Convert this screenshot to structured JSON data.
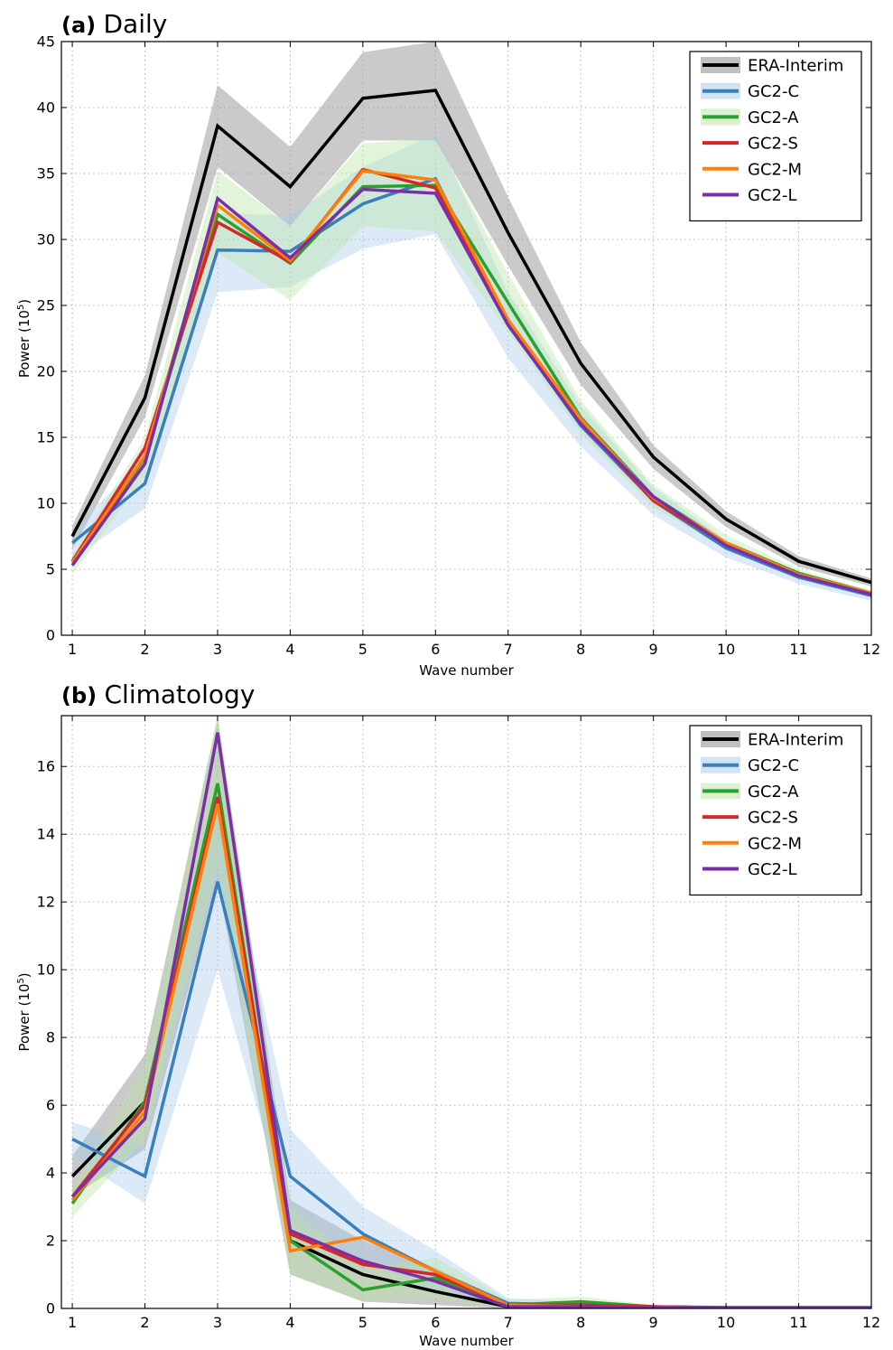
{
  "chart_data": [
    {
      "type": "line",
      "panel_letter": "(a)",
      "title": "Daily",
      "xlabel": "Wave number",
      "ylabel": "Power (10",
      "ylabel_sup": "5",
      "ylabel_close": ")",
      "x": [
        1,
        2,
        3,
        4,
        5,
        6,
        7,
        8,
        9,
        10,
        11,
        12
      ],
      "xlim": [
        0.85,
        12
      ],
      "ylim": [
        0,
        45
      ],
      "yticks": [
        0,
        5,
        10,
        15,
        20,
        25,
        30,
        35,
        40,
        45
      ],
      "grid": true,
      "legend_position": "top-right",
      "series": [
        {
          "name": "ERA-Interim",
          "color": "#000000",
          "band_color": "#9e9e9e",
          "band_opacity": 0.55,
          "values": [
            7.5,
            18.0,
            38.6,
            34.0,
            40.7,
            41.3,
            30.5,
            20.6,
            13.5,
            8.8,
            5.6,
            4.0
          ],
          "lower": [
            6.5,
            16.5,
            35.5,
            31.0,
            37.5,
            37.5,
            28.0,
            19.0,
            12.6,
            8.2,
            5.2,
            3.7
          ],
          "upper": [
            8.3,
            19.7,
            41.7,
            37.0,
            44.2,
            45.0,
            33.2,
            22.2,
            14.4,
            9.4,
            6.0,
            4.3
          ]
        },
        {
          "name": "GC2-C",
          "color": "#3a7fbd",
          "band_color": "#a8c8ea",
          "band_opacity": 0.4,
          "values": [
            7.0,
            11.5,
            29.2,
            29.1,
            32.7,
            34.6,
            23.6,
            15.9,
            10.2,
            6.6,
            4.4,
            3.0
          ],
          "lower": [
            5.8,
            9.6,
            26.0,
            26.4,
            29.3,
            30.4,
            21.0,
            14.3,
            9.1,
            5.9,
            3.9,
            2.6
          ],
          "upper": [
            8.0,
            13.4,
            32.0,
            31.8,
            35.5,
            38.0,
            26.0,
            17.4,
            11.2,
            7.2,
            4.8,
            3.3
          ]
        },
        {
          "name": "GC2-A",
          "color": "#2ca02c",
          "band_color": "#b7e6a6",
          "band_opacity": 0.4,
          "values": [
            5.3,
            13.5,
            31.9,
            28.2,
            34.0,
            34.1,
            25.2,
            16.5,
            10.5,
            7.0,
            4.7,
            3.2
          ],
          "lower": [
            4.6,
            12.0,
            29.0,
            25.4,
            31.0,
            30.6,
            23.0,
            15.3,
            9.7,
            6.5,
            4.4,
            2.9
          ],
          "upper": [
            6.0,
            15.0,
            35.2,
            31.0,
            37.3,
            37.6,
            27.4,
            17.8,
            11.4,
            7.6,
            5.0,
            3.4
          ]
        },
        {
          "name": "GC2-S",
          "color": "#d62728",
          "band_color": "#f3b5b5",
          "band_opacity": 0.0,
          "values": [
            5.6,
            14.2,
            31.3,
            28.3,
            35.3,
            33.9,
            23.6,
            16.2,
            10.2,
            6.9,
            4.6,
            3.1
          ]
        },
        {
          "name": "GC2-M",
          "color": "#ff7f0e",
          "band_color": "#ffd0a0",
          "band_opacity": 0.0,
          "values": [
            5.5,
            13.6,
            32.6,
            28.4,
            35.2,
            34.5,
            23.9,
            16.4,
            10.4,
            7.0,
            4.6,
            3.2
          ]
        },
        {
          "name": "GC2-L",
          "color": "#7b2fa6",
          "band_color": "#d3b5e6",
          "band_opacity": 0.0,
          "values": [
            5.3,
            13.0,
            33.1,
            28.6,
            33.8,
            33.5,
            23.5,
            16.0,
            10.5,
            6.8,
            4.5,
            3.1
          ]
        }
      ]
    },
    {
      "type": "line",
      "panel_letter": "(b)",
      "title": "Climatology",
      "xlabel": "Wave number",
      "ylabel": "Power (10",
      "ylabel_sup": "5",
      "ylabel_close": ")",
      "x": [
        1,
        2,
        3,
        4,
        5,
        6,
        7,
        8,
        9,
        10,
        11,
        12
      ],
      "xlim": [
        0.85,
        12
      ],
      "ylim": [
        0,
        17.5
      ],
      "yticks": [
        0,
        2,
        4,
        6,
        8,
        10,
        12,
        14,
        16
      ],
      "grid": true,
      "legend_position": "top-right",
      "series": [
        {
          "name": "ERA-Interim",
          "color": "#000000",
          "band_color": "#9e9e9e",
          "band_opacity": 0.55,
          "values": [
            3.9,
            6.1,
            15.0,
            2.0,
            1.0,
            0.5,
            0.05,
            0.05,
            0.02,
            0.02,
            0.02,
            0.02
          ],
          "lower": [
            3.3,
            4.7,
            12.6,
            1.0,
            0.2,
            0.1,
            0.0,
            0.0,
            0.0,
            0.0,
            0.0,
            0.0
          ],
          "upper": [
            4.5,
            7.5,
            17.4,
            3.2,
            2.0,
            1.2,
            0.15,
            0.12,
            0.08,
            0.06,
            0.06,
            0.05
          ]
        },
        {
          "name": "GC2-C",
          "color": "#3a7fbd",
          "band_color": "#a8c8ea",
          "band_opacity": 0.4,
          "values": [
            5.0,
            3.9,
            12.6,
            3.9,
            2.2,
            1.1,
            0.15,
            0.1,
            0.05,
            0.03,
            0.03,
            0.03
          ],
          "lower": [
            4.5,
            3.1,
            10.0,
            2.5,
            1.4,
            0.5,
            0.0,
            0.0,
            0.0,
            0.0,
            0.0,
            0.0
          ],
          "upper": [
            5.5,
            4.8,
            15.2,
            5.3,
            3.0,
            1.7,
            0.3,
            0.2,
            0.1,
            0.06,
            0.06,
            0.06
          ]
        },
        {
          "name": "GC2-A",
          "color": "#2ca02c",
          "band_color": "#b7e6a6",
          "band_opacity": 0.4,
          "values": [
            3.1,
            6.1,
            15.5,
            2.0,
            0.55,
            0.9,
            0.1,
            0.2,
            0.05,
            0.02,
            0.02,
            0.02
          ],
          "lower": [
            2.7,
            5.0,
            13.0,
            1.0,
            0.2,
            0.3,
            0.0,
            0.0,
            0.0,
            0.0,
            0.0,
            0.0
          ],
          "upper": [
            3.5,
            7.2,
            17.6,
            3.0,
            1.2,
            1.5,
            0.25,
            0.35,
            0.1,
            0.05,
            0.05,
            0.05
          ]
        },
        {
          "name": "GC2-S",
          "color": "#d62728",
          "band_color": "#f3b5b5",
          "band_opacity": 0.0,
          "values": [
            3.3,
            6.0,
            15.1,
            2.2,
            1.3,
            1.0,
            0.1,
            0.1,
            0.05,
            0.02,
            0.02,
            0.02
          ]
        },
        {
          "name": "GC2-M",
          "color": "#ff7f0e",
          "band_color": "#ffd0a0",
          "band_opacity": 0.0,
          "values": [
            3.2,
            5.8,
            14.9,
            1.7,
            2.1,
            1.1,
            0.1,
            0.05,
            0.03,
            0.02,
            0.02,
            0.02
          ]
        },
        {
          "name": "GC2-L",
          "color": "#7b2fa6",
          "band_color": "#d3b5e6",
          "band_opacity": 0.0,
          "values": [
            3.3,
            5.6,
            17.0,
            2.3,
            1.4,
            0.8,
            0.05,
            0.05,
            0.03,
            0.02,
            0.02,
            0.02
          ]
        }
      ]
    }
  ]
}
